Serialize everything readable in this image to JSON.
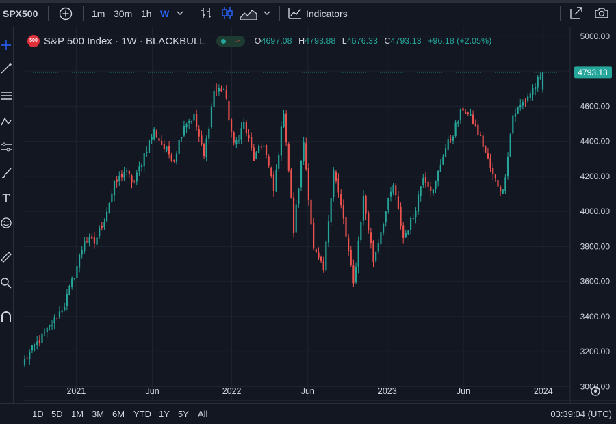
{
  "toolbar": {
    "symbol": "SPX500",
    "intervals": [
      "1m",
      "30m",
      "1h",
      "W"
    ],
    "active_interval": "W",
    "indicators_label": "Indicators"
  },
  "legend": {
    "badge": "500",
    "title": "S&P 500 Index · 1W · BLACKBULL",
    "o_label": "O",
    "o_value": "4697.08",
    "h_label": "H",
    "h_value": "4793.88",
    "l_label": "L",
    "l_value": "4676.33",
    "c_label": "C",
    "c_value": "4793.13",
    "change": "+96.18 (+2.05%)"
  },
  "bottom": {
    "ranges": [
      "1D",
      "5D",
      "1M",
      "3M",
      "6M",
      "YTD",
      "1Y",
      "5Y",
      "All"
    ],
    "clock": "03:39:04 (UTC)"
  },
  "colors": {
    "up": "#26a69a",
    "down": "#ef5350",
    "background": "#131722",
    "grid": "#1f2330",
    "text": "#d1d4dc",
    "accent": "#2962ff",
    "last_price_label": "#26a69a"
  },
  "chart_data": {
    "type": "candlestick",
    "title": "S&P 500 Index · 1W · BLACKBULL",
    "ylim": [
      2920,
      5050
    ],
    "y_ticks": [
      "5000.00",
      "4800.00",
      "4600.00",
      "4400.00",
      "4200.00",
      "4000.00",
      "3800.00",
      "3600.00",
      "3400.00",
      "3200.00",
      "3000.00"
    ],
    "x_ticks": [
      {
        "label": "2021",
        "t": 0.098
      },
      {
        "label": "Jun",
        "t": 0.237
      },
      {
        "label": "2022",
        "t": 0.382
      },
      {
        "label": "Jun",
        "t": 0.521
      },
      {
        "label": "2023",
        "t": 0.666
      },
      {
        "label": "Jun",
        "t": 0.805
      },
      {
        "label": "2024",
        "t": 0.951
      }
    ],
    "last_price": "4793.13",
    "close_path": [
      3150,
      3230,
      3300,
      3380,
      3470,
      3640,
      3840,
      3820,
      3960,
      4150,
      4230,
      4160,
      4330,
      4460,
      4360,
      4300,
      4500,
      4540,
      4310,
      4690,
      4700,
      4370,
      4500,
      4300,
      4390,
      4110,
      4580,
      3890,
      4400,
      3780,
      3660,
      4250,
      3950,
      3580,
      4080,
      3720,
      3950,
      4150,
      3850,
      3970,
      4210,
      4110,
      4330,
      4450,
      4590,
      4510,
      4380,
      4200,
      4110,
      4550,
      4620,
      4697,
      4793
    ]
  }
}
